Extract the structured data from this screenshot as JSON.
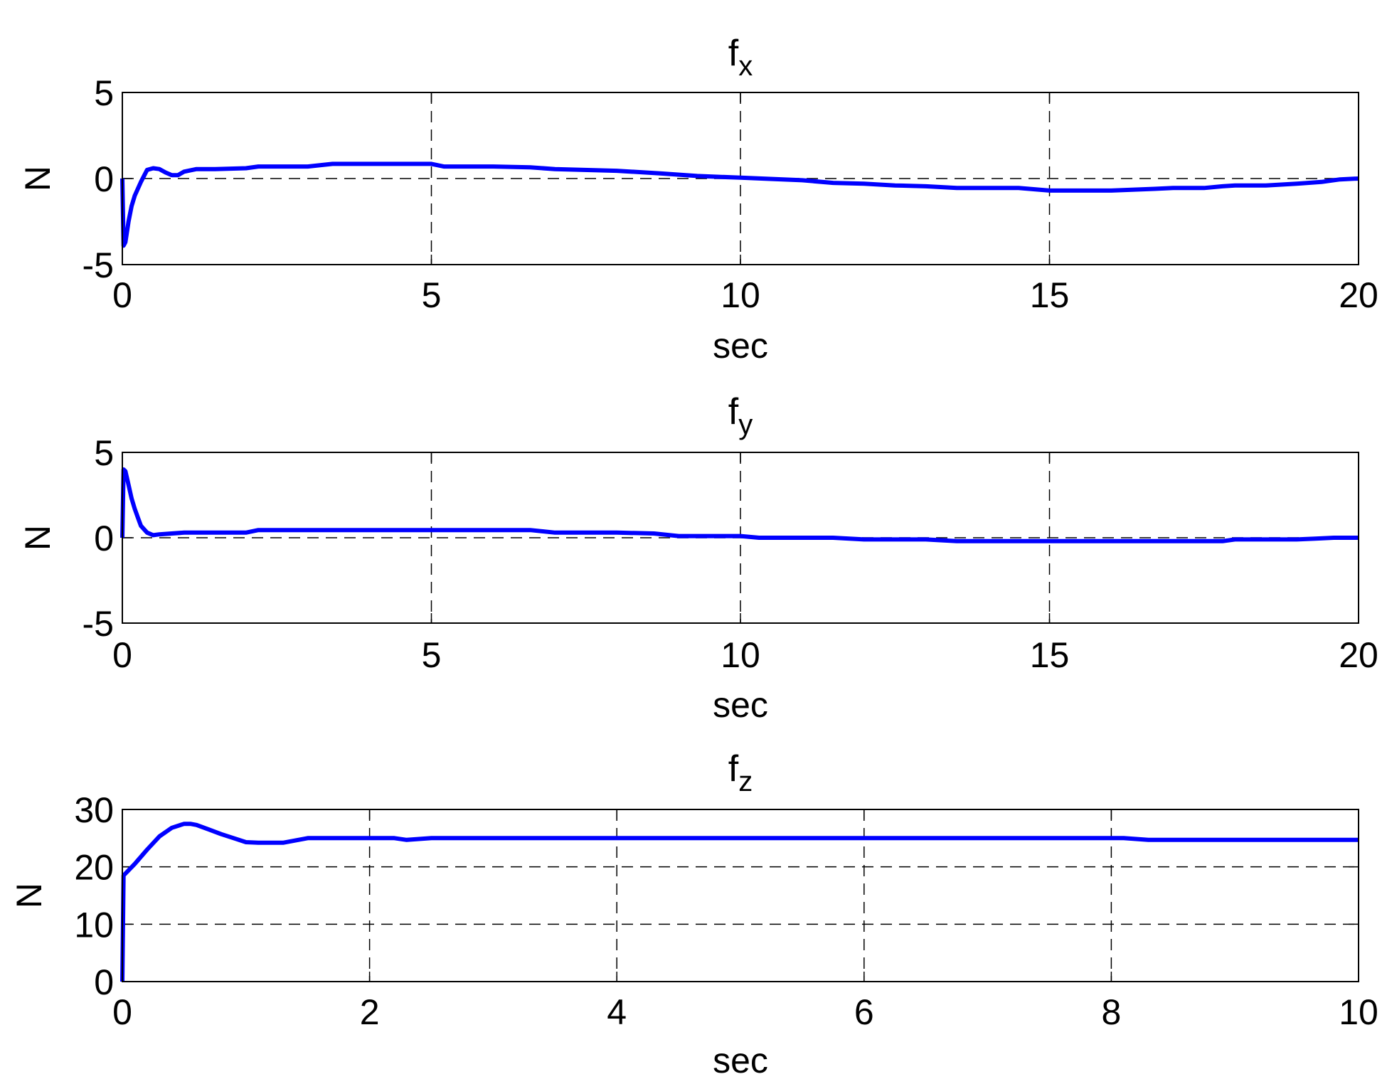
{
  "colors": {
    "line": "#0000ff",
    "axes": "#000000",
    "grid": "#000000",
    "background": "#ffffff"
  },
  "chart_data": [
    {
      "type": "line",
      "title": {
        "base": "f",
        "subscript": "x"
      },
      "xlabel": "sec",
      "ylabel": "N",
      "xlim": [
        0,
        20
      ],
      "ylim": [
        -5,
        5
      ],
      "xticks": [
        0,
        5,
        10,
        15,
        20
      ],
      "yticks": [
        -5,
        0,
        5
      ],
      "xtick_labels": [
        "0",
        "5",
        "10",
        "15",
        "20"
      ],
      "ytick_labels": [
        "-5",
        "0",
        "5"
      ],
      "grid": true,
      "series": [
        {
          "x": [
            0,
            0.02,
            0.05,
            0.1,
            0.15,
            0.2,
            0.3,
            0.4,
            0.5,
            0.6,
            0.7,
            0.8,
            0.9,
            1.0,
            1.2,
            1.5,
            2.0,
            2.2,
            3.0,
            3.4,
            4.0,
            5.0,
            5.2,
            6.0,
            6.6,
            7.0,
            8.0,
            8.7,
            9.3,
            10.0,
            11.0,
            11.5,
            12.0,
            12.5,
            13.0,
            13.5,
            14.0,
            14.5,
            15.0,
            15.5,
            16.0,
            16.7,
            17.0,
            17.5,
            17.8,
            18.0,
            18.5,
            19.0,
            19.4,
            19.7,
            20.0
          ],
          "y": [
            0,
            -3.9,
            -3.7,
            -2.5,
            -1.6,
            -1.0,
            -0.2,
            0.5,
            0.6,
            0.55,
            0.35,
            0.2,
            0.2,
            0.4,
            0.55,
            0.55,
            0.6,
            0.7,
            0.7,
            0.85,
            0.85,
            0.85,
            0.7,
            0.7,
            0.65,
            0.55,
            0.45,
            0.3,
            0.15,
            0.05,
            -0.1,
            -0.25,
            -0.3,
            -0.4,
            -0.45,
            -0.55,
            -0.55,
            -0.55,
            -0.7,
            -0.7,
            -0.7,
            -0.6,
            -0.55,
            -0.55,
            -0.45,
            -0.4,
            -0.4,
            -0.3,
            -0.2,
            -0.05,
            0
          ]
        }
      ]
    },
    {
      "type": "line",
      "title": {
        "base": "f",
        "subscript": "y"
      },
      "xlabel": "sec",
      "ylabel": "N",
      "xlim": [
        0,
        20
      ],
      "ylim": [
        -5,
        5
      ],
      "xticks": [
        0,
        5,
        10,
        15,
        20
      ],
      "yticks": [
        -5,
        0,
        5
      ],
      "xtick_labels": [
        "0",
        "5",
        "10",
        "15",
        "20"
      ],
      "ytick_labels": [
        "-5",
        "0",
        "5"
      ],
      "grid": true,
      "series": [
        {
          "x": [
            0,
            0.02,
            0.05,
            0.1,
            0.15,
            0.2,
            0.25,
            0.3,
            0.4,
            0.5,
            0.6,
            1.0,
            2.0,
            2.2,
            3.0,
            5.0,
            6.0,
            6.6,
            7.0,
            8.0,
            8.6,
            9.0,
            10.0,
            10.3,
            11.0,
            11.5,
            12.0,
            13.0,
            13.5,
            14.0,
            15.0,
            16.0,
            17.0,
            17.8,
            18.0,
            19.0,
            19.3,
            19.6,
            20.0
          ],
          "y": [
            0,
            4.0,
            3.9,
            3.1,
            2.3,
            1.7,
            1.2,
            0.7,
            0.3,
            0.15,
            0.2,
            0.3,
            0.3,
            0.45,
            0.45,
            0.45,
            0.45,
            0.45,
            0.3,
            0.3,
            0.25,
            0.1,
            0.1,
            0.0,
            0.0,
            0.0,
            -0.1,
            -0.1,
            -0.2,
            -0.2,
            -0.2,
            -0.2,
            -0.2,
            -0.2,
            -0.1,
            -0.1,
            -0.05,
            0.0,
            0.0
          ]
        }
      ]
    },
    {
      "type": "line",
      "title": {
        "base": "f",
        "subscript": "z"
      },
      "xlabel": "sec",
      "ylabel": "N",
      "xlim": [
        0,
        10
      ],
      "ylim": [
        0,
        30
      ],
      "xticks": [
        0,
        2,
        4,
        6,
        8,
        10
      ],
      "yticks": [
        0,
        10,
        20,
        30
      ],
      "xtick_labels": [
        "0",
        "2",
        "4",
        "6",
        "8",
        "10"
      ],
      "ytick_labels": [
        "0",
        "10",
        "20",
        "30"
      ],
      "grid": true,
      "series": [
        {
          "x": [
            0,
            0.01,
            0.1,
            0.2,
            0.3,
            0.4,
            0.5,
            0.55,
            0.6,
            0.7,
            0.8,
            0.9,
            1.0,
            1.1,
            1.3,
            1.4,
            1.5,
            2.0,
            2.2,
            2.3,
            2.5,
            3.0,
            4.0,
            5.0,
            6.0,
            7.0,
            8.0,
            8.1,
            8.3,
            9.0,
            10.0
          ],
          "y": [
            0,
            18.5,
            20.5,
            23.0,
            25.3,
            26.8,
            27.5,
            27.5,
            27.3,
            26.5,
            25.7,
            25.0,
            24.3,
            24.2,
            24.2,
            24.6,
            25.0,
            25.0,
            25.0,
            24.7,
            25.0,
            25.0,
            25.0,
            25.0,
            25.0,
            25.0,
            25.0,
            25.0,
            24.7,
            24.7,
            24.7
          ]
        }
      ]
    }
  ]
}
